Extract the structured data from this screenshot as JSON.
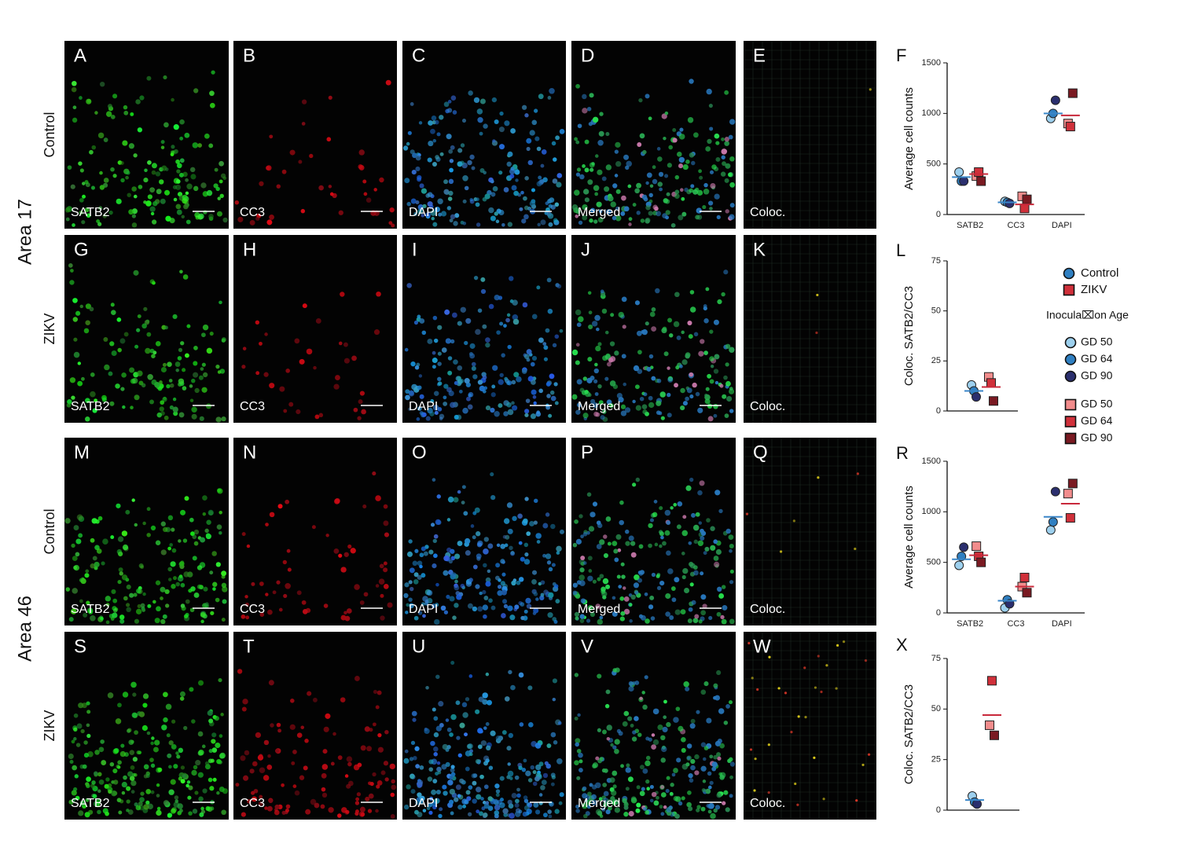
{
  "figure": {
    "areas": [
      "Area 17",
      "Area 46"
    ],
    "rows": [
      {
        "condition": "Control",
        "panels": [
          {
            "letter": "A",
            "stain": "SATB2"
          },
          {
            "letter": "B",
            "stain": "CC3"
          },
          {
            "letter": "C",
            "stain": "DAPI"
          },
          {
            "letter": "D",
            "stain": "Merged"
          },
          {
            "letter": "E",
            "stain": "Coloc."
          }
        ]
      },
      {
        "condition": "ZIKV",
        "panels": [
          {
            "letter": "G",
            "stain": "SATB2"
          },
          {
            "letter": "H",
            "stain": "CC3"
          },
          {
            "letter": "I",
            "stain": "DAPI"
          },
          {
            "letter": "J",
            "stain": "Merged"
          },
          {
            "letter": "K",
            "stain": "Coloc."
          }
        ]
      },
      {
        "condition": "Control",
        "panels": [
          {
            "letter": "M",
            "stain": "SATB2"
          },
          {
            "letter": "N",
            "stain": "CC3"
          },
          {
            "letter": "O",
            "stain": "DAPI"
          },
          {
            "letter": "P",
            "stain": "Merged"
          },
          {
            "letter": "Q",
            "stain": "Coloc."
          }
        ]
      },
      {
        "condition": "ZIKV",
        "panels": [
          {
            "letter": "S",
            "stain": "SATB2"
          },
          {
            "letter": "T",
            "stain": "CC3"
          },
          {
            "letter": "U",
            "stain": "DAPI"
          },
          {
            "letter": "V",
            "stain": "Merged"
          },
          {
            "letter": "W",
            "stain": "Coloc."
          }
        ]
      }
    ]
  },
  "chart_data": [
    {
      "type": "scatter",
      "label": "F",
      "ylabel": "Average cell counts",
      "categories": [
        "SATB2",
        "CC3",
        "DAPI"
      ],
      "ylim": [
        0,
        1500
      ],
      "yticks": [
        0,
        500,
        1000,
        1500
      ],
      "groups": [
        {
          "name": "Control",
          "marker": "circle",
          "color": "#3a86c8",
          "means": [
            370,
            120,
            1000
          ],
          "series": [
            {
              "name": "GD 50",
              "color": "#9dd0ee",
              "values": [
                420,
                130,
                950
              ]
            },
            {
              "name": "GD 64",
              "color": "#2f7fc1",
              "values": [
                330,
                120,
                1000
              ]
            },
            {
              "name": "GD 90",
              "color": "#2b2f6e",
              "values": [
                330,
                110,
                1130
              ]
            }
          ]
        },
        {
          "name": "ZIKV",
          "marker": "square",
          "color": "#c8283a",
          "means": [
            400,
            100,
            980
          ],
          "series": [
            {
              "name": "GD 50",
              "color": "#f28c8c",
              "values": [
                380,
                180,
                900
              ]
            },
            {
              "name": "GD 64",
              "color": "#d0303a",
              "values": [
                420,
                60,
                870
              ]
            },
            {
              "name": "GD 90",
              "color": "#7a1a22",
              "values": [
                330,
                150,
                1200
              ]
            }
          ]
        }
      ]
    },
    {
      "type": "scatter",
      "label": "L",
      "ylabel": "Coloc. SATB2/CC3",
      "categories": [
        null
      ],
      "ylim": [
        0,
        75
      ],
      "yticks": [
        0,
        25,
        50,
        75
      ],
      "legend_title": "Inocula⌧on Age",
      "groups": [
        {
          "name": "Control",
          "marker": "circle",
          "color": "#3a86c8",
          "means": [
            10
          ],
          "series": [
            {
              "name": "GD 50",
              "color": "#9dd0ee",
              "values": [
                13
              ]
            },
            {
              "name": "GD 64",
              "color": "#2f7fc1",
              "values": [
                10
              ]
            },
            {
              "name": "GD 90",
              "color": "#2b2f6e",
              "values": [
                7
              ]
            }
          ]
        },
        {
          "name": "ZIKV",
          "marker": "square",
          "color": "#c8283a",
          "means": [
            12
          ],
          "series": [
            {
              "name": "GD 50",
              "color": "#f28c8c",
              "values": [
                17
              ]
            },
            {
              "name": "GD 64",
              "color": "#d0303a",
              "values": [
                14
              ]
            },
            {
              "name": "GD 90",
              "color": "#7a1a22",
              "values": [
                5
              ]
            }
          ]
        }
      ]
    },
    {
      "type": "scatter",
      "label": "R",
      "ylabel": "Average cell counts",
      "categories": [
        "SATB2",
        "CC3",
        "DAPI"
      ],
      "ylim": [
        0,
        1500
      ],
      "yticks": [
        0,
        500,
        1000,
        1500
      ],
      "groups": [
        {
          "name": "Control",
          "marker": "circle",
          "color": "#3a86c8",
          "means": [
            530,
            120,
            950
          ],
          "series": [
            {
              "name": "GD 50",
              "color": "#9dd0ee",
              "values": [
                470,
                50,
                820
              ]
            },
            {
              "name": "GD 64",
              "color": "#2f7fc1",
              "values": [
                560,
                130,
                900
              ]
            },
            {
              "name": "GD 90",
              "color": "#2b2f6e",
              "values": [
                650,
                90,
                1200
              ]
            }
          ]
        },
        {
          "name": "ZIKV",
          "marker": "square",
          "color": "#c8283a",
          "means": [
            570,
            260,
            1080
          ],
          "series": [
            {
              "name": "GD 50",
              "color": "#f28c8c",
              "values": [
                660,
                260,
                1180
              ]
            },
            {
              "name": "GD 64",
              "color": "#d0303a",
              "values": [
                560,
                350,
                940
              ]
            },
            {
              "name": "GD 90",
              "color": "#7a1a22",
              "values": [
                500,
                200,
                1280
              ]
            }
          ]
        }
      ]
    },
    {
      "type": "scatter",
      "label": "X",
      "ylabel": "Coloc. SATB2/CC3",
      "categories": [
        null
      ],
      "ylim": [
        0,
        75
      ],
      "yticks": [
        0,
        25,
        50,
        75
      ],
      "groups": [
        {
          "name": "Control",
          "marker": "circle",
          "color": "#3a86c8",
          "means": [
            5
          ],
          "series": [
            {
              "name": "GD 50",
              "color": "#9dd0ee",
              "values": [
                7
              ]
            },
            {
              "name": "GD 64",
              "color": "#2f7fc1",
              "values": [
                4
              ]
            },
            {
              "name": "GD 90",
              "color": "#2b2f6e",
              "values": [
                3
              ]
            }
          ]
        },
        {
          "name": "ZIKV",
          "marker": "square",
          "color": "#c8283a",
          "means": [
            47
          ],
          "series": [
            {
              "name": "GD 50",
              "color": "#f28c8c",
              "values": [
                42
              ]
            },
            {
              "name": "GD 64",
              "color": "#d0303a",
              "values": [
                64
              ]
            },
            {
              "name": "GD 90",
              "color": "#7a1a22",
              "values": [
                37
              ]
            }
          ]
        }
      ]
    }
  ]
}
